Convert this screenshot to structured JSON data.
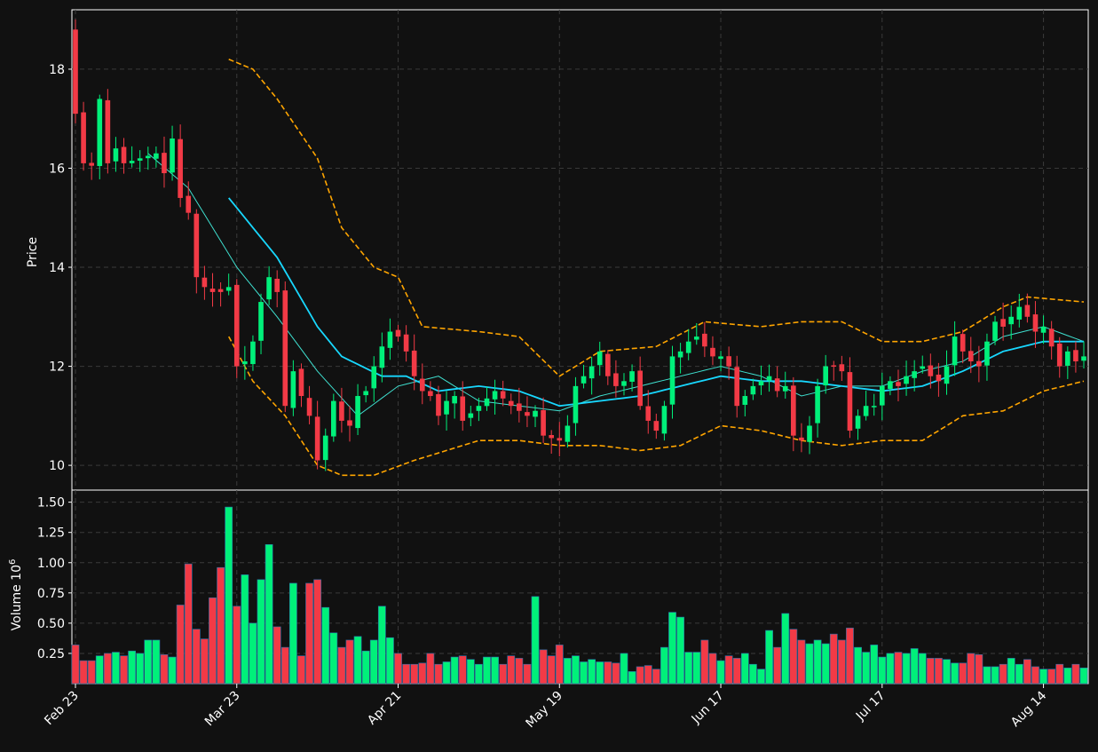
{
  "chart_data": [
    {
      "type": "candlestick",
      "ylabel": "Price",
      "ylim": [
        9.5,
        19.2
      ],
      "yticks": [
        10,
        12,
        14,
        16,
        18
      ],
      "grid": true,
      "x_tick_labels": [
        "Feb 23",
        "Mar 23",
        "Apr 21",
        "May 19",
        "Jun 17",
        "Jul 17",
        "Aug 14"
      ],
      "x_tick_index": [
        0,
        20,
        40,
        60,
        80,
        100,
        120
      ],
      "n_sessions": 126,
      "colors": {
        "up": "#00f07a",
        "down": "#f23a46",
        "ma_short": "#3fe0d0",
        "ma_long": "#18d8ff",
        "bands": "#ffa500"
      },
      "anchor_close": [
        [
          0,
          17.1
        ],
        [
          1,
          16.1
        ],
        [
          2,
          16.05
        ],
        [
          3,
          17.4
        ],
        [
          4,
          16.1
        ],
        [
          5,
          16.4
        ],
        [
          6,
          16.1
        ],
        [
          8,
          16.2
        ],
        [
          10,
          16.3
        ],
        [
          11,
          15.9
        ],
        [
          12,
          16.6
        ],
        [
          13,
          15.4
        ],
        [
          14,
          15.1
        ],
        [
          15,
          13.8
        ],
        [
          16,
          13.6
        ],
        [
          17,
          13.5
        ],
        [
          18,
          13.5
        ],
        [
          19,
          13.6
        ],
        [
          20,
          12.0
        ],
        [
          21,
          12.1
        ],
        [
          22,
          12.5
        ],
        [
          23,
          13.3
        ],
        [
          24,
          13.8
        ],
        [
          25,
          13.5
        ],
        [
          26,
          11.2
        ],
        [
          27,
          11.9
        ],
        [
          28,
          11.4
        ],
        [
          29,
          11.0
        ],
        [
          30,
          10.1
        ],
        [
          31,
          10.6
        ],
        [
          32,
          11.3
        ],
        [
          33,
          10.9
        ],
        [
          34,
          10.8
        ],
        [
          35,
          11.4
        ],
        [
          36,
          11.5
        ],
        [
          37,
          12.0
        ],
        [
          38,
          12.4
        ],
        [
          39,
          12.7
        ],
        [
          40,
          12.6
        ],
        [
          41,
          12.3
        ],
        [
          42,
          11.8
        ],
        [
          43,
          11.5
        ],
        [
          44,
          11.4
        ],
        [
          45,
          11.0
        ],
        [
          46,
          11.3
        ],
        [
          47,
          11.4
        ],
        [
          48,
          10.9
        ],
        [
          50,
          11.2
        ],
        [
          52,
          11.5
        ],
        [
          54,
          11.2
        ],
        [
          56,
          11.0
        ],
        [
          57,
          11.1
        ],
        [
          58,
          10.6
        ],
        [
          60,
          10.5
        ],
        [
          61,
          10.8
        ],
        [
          62,
          11.6
        ],
        [
          63,
          11.8
        ],
        [
          64,
          12.0
        ],
        [
          65,
          12.3
        ],
        [
          66,
          11.8
        ],
        [
          67,
          11.6
        ],
        [
          68,
          11.7
        ],
        [
          69,
          11.9
        ],
        [
          70,
          11.2
        ],
        [
          71,
          10.9
        ],
        [
          72,
          10.7
        ],
        [
          73,
          11.2
        ],
        [
          74,
          12.2
        ],
        [
          75,
          12.3
        ],
        [
          76,
          12.5
        ],
        [
          77,
          12.6
        ],
        [
          78,
          12.4
        ],
        [
          79,
          12.2
        ],
        [
          80,
          12.2
        ],
        [
          81,
          12.0
        ],
        [
          82,
          11.2
        ],
        [
          83,
          11.4
        ],
        [
          84,
          11.6
        ],
        [
          85,
          11.7
        ],
        [
          86,
          11.8
        ],
        [
          87,
          11.5
        ],
        [
          88,
          11.6
        ],
        [
          89,
          10.6
        ],
        [
          90,
          10.5
        ],
        [
          91,
          10.8
        ],
        [
          92,
          11.6
        ],
        [
          93,
          12.0
        ],
        [
          94,
          12.0
        ],
        [
          95,
          11.9
        ],
        [
          96,
          10.7
        ],
        [
          97,
          11.0
        ],
        [
          98,
          11.2
        ],
        [
          99,
          11.2
        ],
        [
          100,
          11.6
        ],
        [
          101,
          11.7
        ],
        [
          102,
          11.6
        ],
        [
          103,
          11.8
        ],
        [
          104,
          11.9
        ],
        [
          105,
          12.0
        ],
        [
          106,
          11.8
        ],
        [
          107,
          11.7
        ],
        [
          108,
          12.0
        ],
        [
          109,
          12.6
        ],
        [
          110,
          12.3
        ],
        [
          111,
          12.1
        ],
        [
          112,
          12.0
        ],
        [
          113,
          12.5
        ],
        [
          114,
          12.9
        ],
        [
          115,
          12.8
        ],
        [
          116,
          13.0
        ],
        [
          117,
          13.2
        ],
        [
          118,
          13.0
        ],
        [
          119,
          12.7
        ],
        [
          120,
          12.8
        ],
        [
          121,
          12.4
        ],
        [
          122,
          12.0
        ],
        [
          123,
          12.3
        ],
        [
          124,
          12.1
        ],
        [
          125,
          12.2
        ]
      ],
      "moving_averages": [
        {
          "name": "",
          "window_hint": "short",
          "approx_points": [
            [
              9,
              16.3
            ],
            [
              14,
              15.6
            ],
            [
              20,
              14.0
            ],
            [
              25,
              13.0
            ],
            [
              30,
              11.9
            ],
            [
              35,
              11.0
            ],
            [
              40,
              11.6
            ],
            [
              45,
              11.8
            ],
            [
              50,
              11.3
            ],
            [
              55,
              11.2
            ],
            [
              60,
              11.1
            ],
            [
              65,
              11.4
            ],
            [
              70,
              11.6
            ],
            [
              75,
              11.8
            ],
            [
              80,
              12.0
            ],
            [
              85,
              11.8
            ],
            [
              90,
              11.4
            ],
            [
              95,
              11.6
            ],
            [
              100,
              11.6
            ],
            [
              105,
              11.9
            ],
            [
              110,
              12.1
            ],
            [
              115,
              12.6
            ],
            [
              120,
              12.8
            ],
            [
              125,
              12.5
            ]
          ]
        },
        {
          "name": "",
          "window_hint": "long",
          "approx_points": [
            [
              19,
              15.4
            ],
            [
              22,
              14.8
            ],
            [
              25,
              14.2
            ],
            [
              30,
              12.8
            ],
            [
              33,
              12.2
            ],
            [
              38,
              11.8
            ],
            [
              41,
              11.8
            ],
            [
              45,
              11.5
            ],
            [
              50,
              11.6
            ],
            [
              55,
              11.5
            ],
            [
              60,
              11.2
            ],
            [
              65,
              11.3
            ],
            [
              70,
              11.4
            ],
            [
              75,
              11.6
            ],
            [
              80,
              11.8
            ],
            [
              85,
              11.7
            ],
            [
              90,
              11.7
            ],
            [
              95,
              11.6
            ],
            [
              100,
              11.5
            ],
            [
              105,
              11.6
            ],
            [
              110,
              11.9
            ],
            [
              115,
              12.3
            ],
            [
              120,
              12.5
            ],
            [
              125,
              12.5
            ]
          ]
        }
      ],
      "bands": {
        "upper_approx": [
          [
            19,
            18.2
          ],
          [
            22,
            18.0
          ],
          [
            25,
            17.4
          ],
          [
            30,
            16.2
          ],
          [
            33,
            14.8
          ],
          [
            37,
            14.0
          ],
          [
            40,
            13.8
          ],
          [
            43,
            12.8
          ],
          [
            50,
            12.7
          ],
          [
            55,
            12.6
          ],
          [
            60,
            11.8
          ],
          [
            65,
            12.3
          ],
          [
            72,
            12.4
          ],
          [
            78,
            12.9
          ],
          [
            85,
            12.8
          ],
          [
            90,
            12.9
          ],
          [
            95,
            12.9
          ],
          [
            100,
            12.5
          ],
          [
            105,
            12.5
          ],
          [
            110,
            12.7
          ],
          [
            115,
            13.2
          ],
          [
            118,
            13.4
          ],
          [
            125,
            13.3
          ]
        ],
        "lower_approx": [
          [
            19,
            12.6
          ],
          [
            22,
            11.7
          ],
          [
            26,
            11.0
          ],
          [
            30,
            10.0
          ],
          [
            33,
            9.8
          ],
          [
            37,
            9.8
          ],
          [
            42,
            10.1
          ],
          [
            46,
            10.3
          ],
          [
            50,
            10.5
          ],
          [
            55,
            10.5
          ],
          [
            60,
            10.4
          ],
          [
            65,
            10.4
          ],
          [
            70,
            10.3
          ],
          [
            75,
            10.4
          ],
          [
            80,
            10.8
          ],
          [
            85,
            10.7
          ],
          [
            90,
            10.5
          ],
          [
            95,
            10.4
          ],
          [
            100,
            10.5
          ],
          [
            105,
            10.5
          ],
          [
            110,
            11.0
          ],
          [
            115,
            11.1
          ],
          [
            120,
            11.5
          ],
          [
            125,
            11.7
          ]
        ]
      }
    },
    {
      "type": "bar",
      "ylabel": "Volume",
      "ylabel_exponent": "6",
      "ylim": [
        0.0,
        1.6
      ],
      "yticks": [
        "0.25",
        "0.50",
        "0.75",
        "1.00",
        "1.25",
        "1.50"
      ],
      "yticks_values": [
        0.25,
        0.5,
        0.75,
        1.0,
        1.25,
        1.5
      ],
      "grid": true,
      "units_note": "millions",
      "values": [
        0.32,
        0.19,
        0.19,
        0.23,
        0.25,
        0.26,
        0.23,
        0.27,
        0.25,
        0.36,
        0.36,
        0.24,
        0.22,
        0.65,
        0.99,
        0.45,
        0.37,
        0.71,
        0.96,
        1.46,
        0.64,
        0.9,
        0.5,
        0.86,
        1.15,
        0.47,
        0.3,
        0.83,
        0.23,
        0.83,
        0.86,
        0.63,
        0.42,
        0.3,
        0.36,
        0.39,
        0.27,
        0.36,
        0.64,
        0.38,
        0.25,
        0.16,
        0.16,
        0.17,
        0.25,
        0.16,
        0.18,
        0.22,
        0.23,
        0.2,
        0.16,
        0.22,
        0.22,
        0.16,
        0.23,
        0.21,
        0.16,
        0.72,
        0.28,
        0.23,
        0.32,
        0.21,
        0.23,
        0.18,
        0.2,
        0.18,
        0.18,
        0.17,
        0.25,
        0.1,
        0.14,
        0.15,
        0.12,
        0.3,
        0.59,
        0.55,
        0.26,
        0.26,
        0.36,
        0.25,
        0.19,
        0.23,
        0.21,
        0.25,
        0.16,
        0.12,
        0.44,
        0.3,
        0.58,
        0.45,
        0.36,
        0.33,
        0.36,
        0.33,
        0.41,
        0.36,
        0.46,
        0.3,
        0.26,
        0.32,
        0.22,
        0.25,
        0.26,
        0.25,
        0.29,
        0.25,
        0.21,
        0.21,
        0.2,
        0.17,
        0.17,
        0.25,
        0.24,
        0.14,
        0.14,
        0.16,
        0.21,
        0.16,
        0.2,
        0.14,
        0.12,
        0.12,
        0.16,
        0.13,
        0.16,
        0.13
      ]
    }
  ]
}
